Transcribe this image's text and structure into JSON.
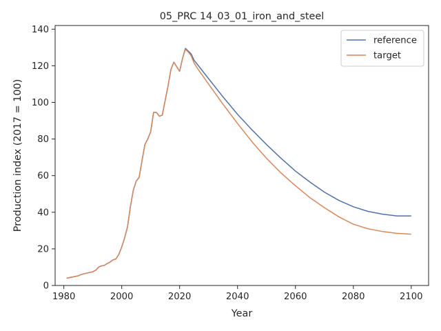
{
  "chart_data": {
    "type": "line",
    "title": "05_PRC 14_03_01_iron_and_steel",
    "xlabel": "Year",
    "ylabel": "Production index (2017 = 100)",
    "xlim": [
      1977,
      2106
    ],
    "ylim": [
      0,
      142
    ],
    "xticks": [
      1980,
      2000,
      2020,
      2040,
      2060,
      2080,
      2100
    ],
    "yticks": [
      0,
      20,
      40,
      60,
      80,
      100,
      120,
      140
    ],
    "grid": false,
    "legend_position": "top-right",
    "series": [
      {
        "name": "reference",
        "color": "#4c72b0",
        "x": [
          1981,
          1983,
          1985,
          1986,
          1988,
          1990,
          1991,
          1992,
          1993,
          1994,
          1995,
          1996,
          1997,
          1998,
          1999,
          2000,
          2001,
          2002,
          2003,
          2004,
          2005,
          2006,
          2007,
          2008,
          2009,
          2010,
          2011,
          2012,
          2013,
          2014,
          2015,
          2016,
          2017,
          2018,
          2019,
          2020,
          2021,
          2022,
          2023,
          2024,
          2025,
          2026,
          2030,
          2035,
          2040,
          2045,
          2050,
          2055,
          2060,
          2065,
          2070,
          2075,
          2080,
          2085,
          2090,
          2095,
          2100
        ],
        "y": [
          4,
          4.6,
          5.3,
          6,
          6.8,
          7.5,
          8.3,
          10,
          10.7,
          11,
          12,
          12.8,
          14,
          14.5,
          17,
          21,
          26,
          32,
          43,
          52,
          57,
          59,
          68,
          77,
          80,
          84,
          94.5,
          94.5,
          92.5,
          93,
          101,
          109,
          118,
          122,
          119.5,
          117,
          124,
          129.5,
          128,
          126.5,
          123,
          121,
          113,
          103,
          93.5,
          85,
          77,
          69.5,
          62.5,
          56.5,
          51,
          46.5,
          43,
          40.5,
          39,
          38,
          38
        ]
      },
      {
        "name": "target",
        "color": "#dd8452",
        "x": [
          1981,
          1983,
          1985,
          1986,
          1988,
          1990,
          1991,
          1992,
          1993,
          1994,
          1995,
          1996,
          1997,
          1998,
          1999,
          2000,
          2001,
          2002,
          2003,
          2004,
          2005,
          2006,
          2007,
          2008,
          2009,
          2010,
          2011,
          2012,
          2013,
          2014,
          2015,
          2016,
          2017,
          2018,
          2019,
          2020,
          2021,
          2022,
          2023,
          2024,
          2025,
          2026,
          2030,
          2035,
          2040,
          2045,
          2050,
          2055,
          2060,
          2065,
          2070,
          2075,
          2080,
          2085,
          2090,
          2095,
          2100
        ],
        "y": [
          4,
          4.6,
          5.3,
          6,
          6.8,
          7.5,
          8.3,
          10,
          10.7,
          11,
          12,
          12.8,
          14,
          14.5,
          17,
          21,
          26,
          32,
          43,
          52,
          57,
          59,
          68,
          77,
          80,
          84,
          94.5,
          94.5,
          92.5,
          93,
          101,
          109,
          118,
          122,
          119.5,
          117,
          124,
          129,
          127.5,
          125.5,
          121.5,
          119,
          110,
          99,
          88.5,
          78.5,
          69.5,
          61.5,
          54.5,
          48,
          42.5,
          37.5,
          33.5,
          31,
          29.5,
          28.5,
          28
        ]
      }
    ]
  }
}
